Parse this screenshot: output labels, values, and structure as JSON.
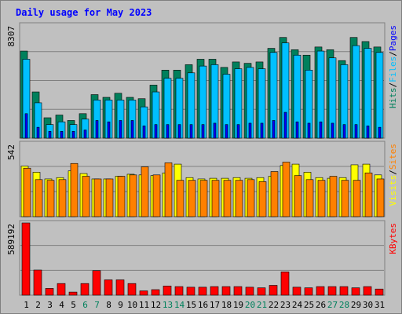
{
  "chart_data": {
    "type": "bar",
    "title": "Daily usage for May 2023",
    "days": [
      "1",
      "2",
      "3",
      "4",
      "5",
      "6",
      "7",
      "8",
      "9",
      "10",
      "11",
      "12",
      "13",
      "14",
      "15",
      "16",
      "17",
      "18",
      "19",
      "20",
      "21",
      "22",
      "23",
      "24",
      "25",
      "26",
      "27",
      "28",
      "29",
      "30",
      "31"
    ],
    "weekend_days": [
      "6",
      "7",
      "13",
      "14",
      "20",
      "21",
      "27",
      "28"
    ],
    "colors": {
      "hits": "#00805c",
      "files": "#00c0ff",
      "pages": "#0000ff",
      "visits": "#ffff00",
      "sites": "#ff8000",
      "kbytes": "#ff0000",
      "weekday_label": "#000000",
      "weekend_label": "#00805c"
    },
    "panels": [
      {
        "id": "top",
        "max_label": "8307",
        "ylim": [
          0,
          8307
        ],
        "legend": [
          {
            "text": "Hits",
            "color": "#00805c"
          },
          {
            "text": "/",
            "color": "#000000"
          },
          {
            "text": "Files",
            "color": "#00c0ff"
          },
          {
            "text": "/",
            "color": "#000000"
          },
          {
            "text": "Pages",
            "color": "#0000ff"
          }
        ],
        "series": [
          {
            "name": "Hits",
            "color": "#00805c",
            "values": [
              6400,
              3400,
              1500,
              1700,
              1300,
              1800,
              3200,
              3000,
              3300,
              3000,
              2900,
              3900,
              5000,
              5000,
              5400,
              5800,
              5800,
              5200,
              5600,
              5500,
              5600,
              6600,
              7400,
              6500,
              6100,
              6700,
              6500,
              5700,
              7400,
              7100,
              6700
            ]
          },
          {
            "name": "Files",
            "color": "#00c0ff",
            "values": [
              5800,
              2600,
              1000,
              1200,
              1000,
              1400,
              2800,
              2800,
              2800,
              2800,
              2300,
              3400,
              4400,
              4400,
              4800,
              5300,
              5400,
              4700,
              5100,
              5200,
              5100,
              6300,
              7000,
              6100,
              5000,
              6400,
              5900,
              5400,
              6800,
              6600,
              6300
            ]
          },
          {
            "name": "Pages",
            "color": "#0000ff",
            "values": [
              1800,
              800,
              500,
              500,
              500,
              600,
              1300,
              1200,
              1300,
              1300,
              900,
              1000,
              1000,
              1000,
              1000,
              1000,
              1100,
              1000,
              1000,
              1100,
              1100,
              1300,
              1900,
              1200,
              1100,
              1200,
              1100,
              1000,
              1000,
              900,
              800
            ]
          }
        ]
      },
      {
        "id": "middle",
        "max_label": "542",
        "ylim": [
          0,
          542
        ],
        "legend": [
          {
            "text": "Visits",
            "color": "#ffff00"
          },
          {
            "text": "/",
            "color": "#000000"
          },
          {
            "text": "Sites",
            "color": "#ff8000"
          }
        ],
        "series": [
          {
            "name": "Visits",
            "color": "#ffff00",
            "values": [
              375,
              330,
              280,
              290,
              340,
              320,
              280,
              280,
              300,
              315,
              310,
              305,
              325,
              390,
              290,
              280,
              285,
              285,
              290,
              285,
              290,
              300,
              380,
              390,
              330,
              290,
              285,
              290,
              385,
              390,
              310
            ]
          },
          {
            "name": "Sites",
            "color": "#ff8000",
            "values": [
              360,
              275,
              270,
              275,
              395,
              300,
              280,
              280,
              300,
              310,
              370,
              310,
              400,
              270,
              270,
              270,
              270,
              270,
              270,
              275,
              260,
              335,
              405,
              305,
              275,
              270,
              300,
              270,
              270,
              325,
              280
            ]
          }
        ]
      },
      {
        "id": "bottom",
        "max_label": "589192",
        "ylim": [
          0,
          589192
        ],
        "legend": [
          {
            "text": "KBytes",
            "color": "#ff0000"
          }
        ],
        "series": [
          {
            "name": "KBytes",
            "color": "#ff0000",
            "values": [
              589192,
              205000,
              55000,
              95000,
              25000,
              95000,
              200000,
              125000,
              125000,
              95000,
              35000,
              45000,
              75000,
              70000,
              65000,
              65000,
              70000,
              70000,
              70000,
              65000,
              60000,
              80000,
              190000,
              65000,
              60000,
              70000,
              70000,
              70000,
              60000,
              70000,
              50000
            ]
          }
        ]
      }
    ]
  }
}
